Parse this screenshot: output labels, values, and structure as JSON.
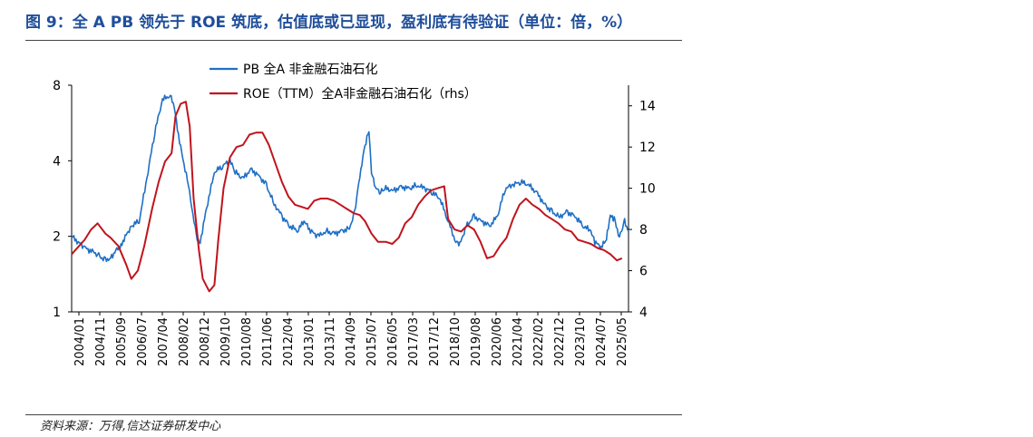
{
  "figure": {
    "title": "图 9：全 A PB 领先于 ROE 筑底，估值底或已显现，盈利底有待验证（单位：倍，%）",
    "source": "资料来源：万得,信达证券研发中心"
  },
  "chart_data": {
    "type": "line",
    "x_tick_labels": [
      "2004/01",
      "2004/11",
      "2005/09",
      "2006/07",
      "2007/04",
      "2008/02",
      "2008/12",
      "2009/10",
      "2010/08",
      "2011/06",
      "2012/04",
      "2013/01",
      "2013/11",
      "2014/09",
      "2015/07",
      "2016/05",
      "2017/03",
      "2017/12",
      "2018/10",
      "2019/08",
      "2020/06",
      "2021/04",
      "2022/02",
      "2022/12",
      "2023/10",
      "2024/07",
      "2025/05"
    ],
    "y_left": {
      "scale": "log",
      "ylim": [
        1,
        8
      ],
      "ticks": [
        1,
        2,
        4,
        8
      ],
      "tick_labels": [
        "1",
        "2",
        "4",
        "8"
      ]
    },
    "y_right": {
      "ylim": [
        4,
        15
      ],
      "ticks": [
        4,
        6,
        8,
        10,
        12,
        14
      ],
      "tick_labels": [
        "4",
        "6",
        "8",
        "10",
        "12",
        "14"
      ]
    },
    "legend": {
      "position": "top-center"
    },
    "grid": false,
    "series": [
      {
        "name": "PB 全A 非金融石油石化",
        "axis": "left",
        "color": "#1f6fc5",
        "x": [
          2004.0,
          2004.5,
          2005.0,
          2005.3,
          2005.5,
          2005.9,
          2006.3,
          2006.6,
          2006.9,
          2007.2,
          2007.5,
          2007.8,
          2007.95,
          2008.2,
          2008.5,
          2008.8,
          2008.95,
          2009.2,
          2009.5,
          2009.8,
          2010.1,
          2010.3,
          2010.6,
          2010.9,
          2011.2,
          2011.5,
          2011.8,
          2012.1,
          2012.4,
          2012.7,
          2012.95,
          2013.2,
          2013.5,
          2013.8,
          2014.1,
          2014.4,
          2014.7,
          2014.9,
          2015.1,
          2015.3,
          2015.45,
          2015.55,
          2015.7,
          2015.9,
          2016.1,
          2016.4,
          2016.7,
          2017.0,
          2017.3,
          2017.6,
          2017.9,
          2018.2,
          2018.5,
          2018.8,
          2018.95,
          2019.2,
          2019.5,
          2019.8,
          2020.1,
          2020.4,
          2020.7,
          2021.0,
          2021.3,
          2021.6,
          2021.9,
          2022.2,
          2022.5,
          2022.8,
          2023.1,
          2023.4,
          2023.7,
          2024.0,
          2024.15,
          2024.4,
          2024.6,
          2024.75,
          2024.9,
          2025.1,
          2025.3,
          2025.45
        ],
        "y": [
          2.0,
          1.8,
          1.7,
          1.6,
          1.65,
          1.85,
          2.2,
          2.3,
          3.4,
          5.2,
          7.0,
          7.3,
          6.5,
          4.5,
          3.2,
          2.0,
          1.9,
          2.6,
          3.6,
          3.8,
          4.0,
          3.6,
          3.4,
          3.7,
          3.5,
          3.2,
          2.7,
          2.4,
          2.2,
          2.1,
          2.3,
          2.1,
          2.0,
          2.1,
          2.05,
          2.1,
          2.15,
          2.5,
          3.5,
          4.6,
          5.3,
          3.6,
          3.1,
          3.0,
          3.1,
          3.05,
          3.15,
          3.1,
          3.2,
          3.1,
          3.0,
          2.8,
          2.3,
          1.9,
          1.85,
          2.2,
          2.4,
          2.3,
          2.2,
          2.4,
          3.1,
          3.2,
          3.3,
          3.2,
          3.0,
          2.7,
          2.5,
          2.4,
          2.5,
          2.4,
          2.2,
          2.1,
          1.9,
          1.8,
          1.95,
          2.4,
          2.35,
          2.0,
          2.3,
          2.1
        ]
      },
      {
        "name": "ROE（TTM）全A非金融石油石化（rhs）",
        "axis": "right",
        "color": "#c0141c",
        "x": [
          2004.0,
          2004.5,
          2004.75,
          2005.0,
          2005.3,
          2005.5,
          2005.8,
          2006.1,
          2006.3,
          2006.55,
          2006.8,
          2007.1,
          2007.35,
          2007.6,
          2007.85,
          2008.0,
          2008.2,
          2008.4,
          2008.55,
          2008.7,
          2008.9,
          2009.05,
          2009.3,
          2009.5,
          2009.65,
          2009.85,
          2010.1,
          2010.35,
          2010.6,
          2010.85,
          2011.1,
          2011.35,
          2011.6,
          2011.85,
          2012.1,
          2012.35,
          2012.6,
          2012.85,
          2013.1,
          2013.35,
          2013.6,
          2013.85,
          2014.1,
          2014.35,
          2014.6,
          2014.85,
          2015.1,
          2015.3,
          2015.55,
          2015.8,
          2016.1,
          2016.35,
          2016.6,
          2016.85,
          2017.1,
          2017.35,
          2017.6,
          2017.85,
          2018.1,
          2018.35,
          2018.5,
          2018.75,
          2019.0,
          2019.25,
          2019.5,
          2019.75,
          2020.0,
          2020.25,
          2020.5,
          2020.75,
          2021.0,
          2021.25,
          2021.5,
          2021.75,
          2022.0,
          2022.25,
          2022.5,
          2022.75,
          2023.0,
          2023.25,
          2023.5,
          2023.75,
          2024.0,
          2024.25,
          2024.5,
          2024.75,
          2025.0,
          2025.2
        ],
        "y": [
          6.8,
          7.5,
          8.0,
          8.3,
          7.8,
          7.6,
          7.2,
          6.3,
          5.6,
          6.0,
          7.2,
          9.0,
          10.3,
          11.3,
          11.7,
          13.5,
          14.1,
          14.2,
          13.0,
          9.5,
          7.0,
          5.6,
          5.0,
          5.3,
          7.5,
          10.0,
          11.5,
          12.0,
          12.1,
          12.6,
          12.7,
          12.7,
          12.1,
          11.2,
          10.3,
          9.6,
          9.2,
          9.1,
          9.0,
          9.4,
          9.5,
          9.5,
          9.4,
          9.2,
          9.0,
          8.8,
          8.7,
          8.4,
          7.8,
          7.4,
          7.4,
          7.3,
          7.6,
          8.3,
          8.6,
          9.2,
          9.6,
          9.9,
          10.0,
          10.1,
          8.5,
          8.0,
          7.9,
          8.2,
          8.0,
          7.4,
          6.6,
          6.7,
          7.2,
          7.6,
          8.5,
          9.2,
          9.5,
          9.2,
          9.0,
          8.7,
          8.5,
          8.3,
          8.0,
          7.9,
          7.5,
          7.4,
          7.3,
          7.1,
          7.0,
          6.8,
          6.5,
          6.6
        ]
      }
    ]
  }
}
